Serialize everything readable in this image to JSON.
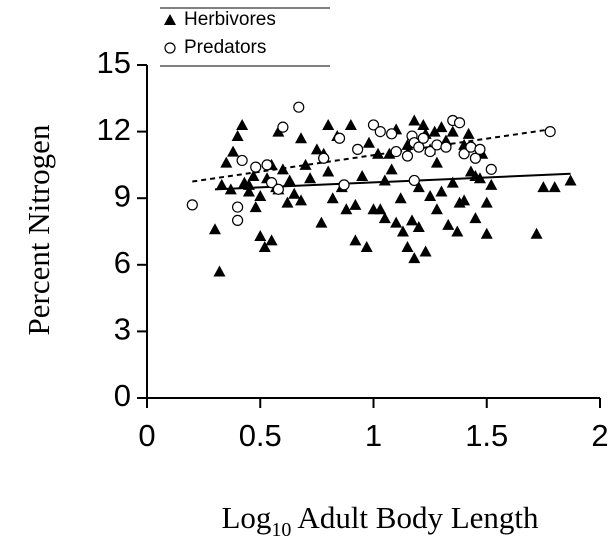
{
  "chart_data": {
    "type": "scatter",
    "xlabel_parts": [
      "Log",
      "10",
      " Adult Body Length"
    ],
    "ylabel": "Percent Nitrogen",
    "xlim": [
      0,
      2
    ],
    "xticks": [
      0,
      0.5,
      1,
      1.5,
      2
    ],
    "ylim": [
      0,
      15
    ],
    "yticks": [
      0,
      3,
      6,
      9,
      12,
      15
    ],
    "legend": "top-left",
    "series": [
      {
        "name": "Herbivores",
        "marker": "triangle",
        "color": "#000000",
        "x": [
          0.32,
          0.3,
          0.33,
          0.35,
          0.37,
          0.38,
          0.4,
          0.42,
          0.43,
          0.45,
          0.47,
          0.48,
          0.5,
          0.5,
          0.52,
          0.53,
          0.55,
          0.55,
          0.57,
          0.58,
          0.6,
          0.62,
          0.63,
          0.65,
          0.68,
          0.68,
          0.7,
          0.72,
          0.75,
          0.77,
          0.78,
          0.8,
          0.8,
          0.82,
          0.84,
          0.86,
          0.88,
          0.9,
          0.92,
          0.92,
          0.95,
          0.97,
          0.98,
          1.0,
          1.02,
          1.03,
          1.05,
          1.07,
          1.08,
          1.1,
          1.1,
          1.12,
          1.13,
          1.15,
          1.15,
          1.17,
          1.18,
          1.18,
          1.2,
          1.2,
          1.22,
          1.23,
          1.23,
          1.25,
          1.25,
          1.27,
          1.28,
          1.28,
          1.3,
          1.3,
          1.32,
          1.33,
          1.35,
          1.35,
          1.37,
          1.38,
          1.4,
          1.4,
          1.42,
          1.43,
          1.45,
          1.45,
          1.47,
          1.48,
          1.5,
          1.52,
          1.72,
          1.75,
          1.8,
          1.87,
          0.45,
          0.58,
          1.05,
          1.5
        ],
        "values": [
          5.7,
          7.6,
          9.6,
          10.6,
          9.4,
          11.1,
          11.8,
          12.3,
          9.7,
          9.3,
          10.0,
          8.6,
          9.1,
          7.3,
          6.8,
          9.9,
          10.5,
          7.1,
          9.5,
          12.0,
          10.3,
          8.8,
          9.8,
          9.2,
          11.7,
          8.9,
          10.5,
          9.9,
          11.2,
          7.9,
          11.0,
          12.3,
          10.2,
          9.0,
          11.8,
          9.5,
          8.5,
          12.3,
          8.7,
          7.1,
          10.0,
          6.8,
          11.5,
          8.5,
          11.0,
          8.5,
          9.8,
          11.0,
          10.3,
          7.9,
          12.1,
          9.0,
          7.5,
          11.4,
          6.8,
          8.0,
          12.5,
          6.3,
          7.7,
          9.5,
          12.3,
          11.9,
          6.6,
          9.1,
          11.2,
          12.0,
          10.6,
          8.5,
          12.2,
          9.3,
          11.6,
          7.8,
          12.0,
          9.7,
          7.5,
          8.8,
          11.4,
          8.9,
          11.9,
          10.2,
          8.1,
          10.0,
          9.9,
          11.0,
          7.4,
          9.6,
          7.4,
          9.5,
          9.5,
          9.8,
          9.6,
          9.4,
          8.1,
          8.8
        ],
        "trend": {
          "x": [
            0.3,
            1.87
          ],
          "y": [
            9.4,
            10.1
          ],
          "dash": false
        }
      },
      {
        "name": "Predators",
        "marker": "circle",
        "color": "#000000",
        "x": [
          0.2,
          0.4,
          0.4,
          0.42,
          0.48,
          0.53,
          0.55,
          0.58,
          0.6,
          0.67,
          0.78,
          0.85,
          0.87,
          0.93,
          1.0,
          1.03,
          1.08,
          1.1,
          1.15,
          1.17,
          1.18,
          1.18,
          1.2,
          1.22,
          1.25,
          1.28,
          1.32,
          1.35,
          1.38,
          1.4,
          1.43,
          1.45,
          1.47,
          1.52,
          1.78
        ],
        "values": [
          8.7,
          8.0,
          8.6,
          10.7,
          10.4,
          10.5,
          9.7,
          9.4,
          12.2,
          13.1,
          10.8,
          11.7,
          9.6,
          11.2,
          12.3,
          12.0,
          11.9,
          11.1,
          10.9,
          11.8,
          11.5,
          9.8,
          11.3,
          11.7,
          11.1,
          11.4,
          11.3,
          12.5,
          12.4,
          11.0,
          11.3,
          10.8,
          11.2,
          10.3,
          12.0
        ],
        "trend": {
          "x": [
            0.2,
            1.78
          ],
          "y": [
            9.75,
            12.1
          ],
          "dash": true
        }
      }
    ]
  }
}
